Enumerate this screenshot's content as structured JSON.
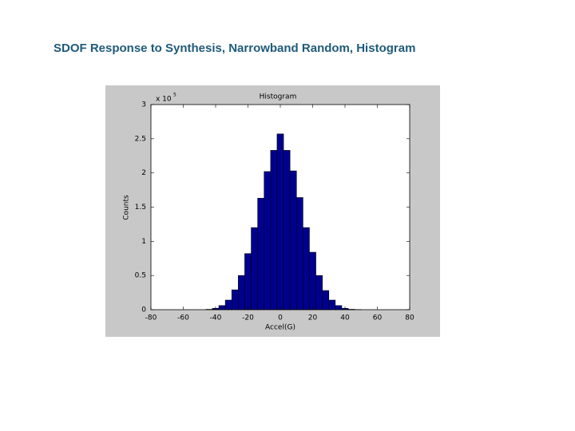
{
  "slide_title": "SDOF Response to Synthesis, Narrowband Random, Histogram",
  "chart_data": {
    "type": "histogram",
    "title": "Histogram",
    "xlabel": "Accel(G)",
    "ylabel": "Counts",
    "y_exponent": "x 10",
    "y_exponent_power": "5",
    "bins": [
      -46,
      -42,
      -38,
      -34,
      -30,
      -26,
      -22,
      -18,
      -14,
      -10,
      -6,
      -2,
      2,
      6,
      10,
      14,
      18,
      22,
      26,
      30,
      34,
      38,
      42,
      46,
      50
    ],
    "counts": [
      0.005,
      0.02,
      0.06,
      0.14,
      0.29,
      0.5,
      0.82,
      1.2,
      1.63,
      2.02,
      2.33,
      2.57,
      2.33,
      2.03,
      1.64,
      1.2,
      0.84,
      0.5,
      0.28,
      0.14,
      0.06,
      0.02,
      0.006,
      0.002
    ],
    "color": "#00008f",
    "xlim": [
      -80,
      80
    ],
    "xticks": [
      -80,
      -60,
      -40,
      -20,
      0,
      20,
      40,
      60,
      80
    ],
    "ylim": [
      0,
      3
    ],
    "yticks": [
      0,
      0.5,
      1,
      1.5,
      2,
      2.5,
      3
    ]
  }
}
